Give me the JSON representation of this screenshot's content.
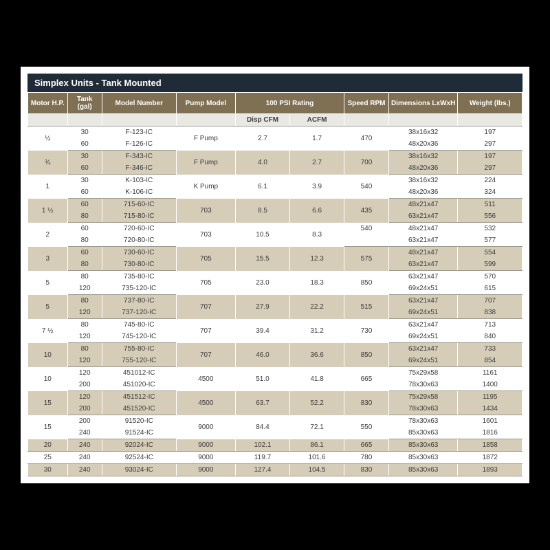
{
  "title": "Simplex Units - Tank Mounted",
  "headers": {
    "motor": "Motor H.P.",
    "tank": "Tank (gal)",
    "model": "Model Number",
    "pump": "Pump Model",
    "psi": "100 PSI Rating",
    "speed": "Speed RPM",
    "dims": "Dimensions LxWxH",
    "weight": "Weight (lbs.)"
  },
  "subheaders": {
    "disp": "Disp CFM",
    "acfm": "ACFM"
  },
  "colWidths": [
    "8%",
    "7%",
    "15%",
    "12%",
    "11%",
    "11%",
    "9%",
    "14%",
    "13%"
  ],
  "groups": [
    {
      "shade": "w",
      "hp": "½",
      "rows": [
        {
          "tank": "30",
          "model": "F-123-IC",
          "dims": "38x16x32",
          "weight": "197"
        },
        {
          "tank": "60",
          "model": "F-126-IC",
          "dims": "48x20x36",
          "weight": "297"
        }
      ],
      "pump": "F Pump",
      "disp": "2.7",
      "acfm": "1.7",
      "rpm": "470"
    },
    {
      "shade": "t",
      "hp": "¾",
      "rows": [
        {
          "tank": "30",
          "model": "F-343-IC",
          "dims": "38x16x32",
          "weight": "197"
        },
        {
          "tank": "60",
          "model": "F-346-IC",
          "dims": "48x20x36",
          "weight": "297"
        }
      ],
      "pump": "F Pump",
      "disp": "4.0",
      "acfm": "2.7",
      "rpm": "700"
    },
    {
      "shade": "w",
      "hp": "1",
      "rows": [
        {
          "tank": "30",
          "model": "K-103-IC",
          "dims": "38x16x32",
          "weight": "224"
        },
        {
          "tank": "60",
          "model": "K-106-IC",
          "dims": "48x20x36",
          "weight": "324"
        }
      ],
      "pump": "K Pump",
      "disp": "6.1",
      "acfm": "3.9",
      "rpm": "540"
    },
    {
      "shade": "t",
      "hp": "1 ½",
      "rows": [
        {
          "tank": "60",
          "model": "715-60-IC",
          "dims": "48x21x47",
          "weight": "511"
        },
        {
          "tank": "80",
          "model": "715-80-IC",
          "dims": "63x21x47",
          "weight": "556"
        }
      ],
      "pump": "703",
      "disp": "8.5",
      "acfm": "6.6",
      "rpm": "435"
    },
    {
      "shade": "w",
      "hp": "2",
      "rows": [
        {
          "tank": "60",
          "model": "720-60-IC",
          "dims": "48x21x47",
          "weight": "532"
        },
        {
          "tank": "80",
          "model": "720-80-IC",
          "dims": "63x21x47",
          "weight": "577"
        }
      ],
      "pump": "703",
      "disp": "10.5",
      "acfm": "8.3",
      "rpm": "540",
      "rpmTop": true
    },
    {
      "shade": "t",
      "hp": "3",
      "rows": [
        {
          "tank": "60",
          "model": "730-60-IC",
          "dims": "48x21x47",
          "weight": "554"
        },
        {
          "tank": "80",
          "model": "730-80-IC",
          "dims": "63x21x47",
          "weight": "599"
        }
      ],
      "pump": "705",
      "disp": "15.5",
      "acfm": "12.3",
      "rpm": "575"
    },
    {
      "shade": "w",
      "hp": "5",
      "rows": [
        {
          "tank": "80",
          "model": "735-80-IC",
          "dims": "63x21x47",
          "weight": "570"
        },
        {
          "tank": "120",
          "model": "735-120-IC",
          "dims": "69x24x51",
          "weight": "615"
        }
      ],
      "pump": "705",
      "disp": "23.0",
      "acfm": "18.3",
      "rpm": "850"
    },
    {
      "shade": "t",
      "hp": "5",
      "rows": [
        {
          "tank": "80",
          "model": "737-80-IC",
          "dims": "63x21x47",
          "weight": "707"
        },
        {
          "tank": "120",
          "model": "737-120-IC",
          "dims": "69x24x51",
          "weight": "838"
        }
      ],
      "pump": "707",
      "disp": "27.9",
      "acfm": "22.2",
      "rpm": "515"
    },
    {
      "shade": "w",
      "hp": "7 ½",
      "rows": [
        {
          "tank": "80",
          "model": "745-80-IC",
          "dims": "63x21x47",
          "weight": "713"
        },
        {
          "tank": "120",
          "model": "745-120-IC",
          "dims": "69x24x51",
          "weight": "840"
        }
      ],
      "pump": "707",
      "disp": "39.4",
      "acfm": "31.2",
      "rpm": "730"
    },
    {
      "shade": "t",
      "hp": "10",
      "rows": [
        {
          "tank": "80",
          "model": "755-80-IC",
          "dims": "63x21x47",
          "weight": "733"
        },
        {
          "tank": "120",
          "model": "755-120-IC",
          "dims": "69x24x51",
          "weight": "854"
        }
      ],
      "pump": "707",
      "disp": "46.0",
      "acfm": "36.6",
      "rpm": "850"
    },
    {
      "shade": "w",
      "hp": "10",
      "rows": [
        {
          "tank": "120",
          "model": "451012-IC",
          "dims": "75x29x58",
          "weight": "1161"
        },
        {
          "tank": "200",
          "model": "451020-IC",
          "dims": "78x30x63",
          "weight": "1400"
        }
      ],
      "pump": "4500",
      "disp": "51.0",
      "acfm": "41.8",
      "rpm": "665"
    },
    {
      "shade": "t",
      "hp": "15",
      "rows": [
        {
          "tank": "120",
          "model": "451512-IC",
          "dims": "75x29x58",
          "weight": "1195"
        },
        {
          "tank": "200",
          "model": "451520-IC",
          "dims": "78x30x63",
          "weight": "1434"
        }
      ],
      "pump": "4500",
      "disp": "63.7",
      "acfm": "52.2",
      "rpm": "830"
    },
    {
      "shade": "w",
      "hp": "15",
      "rows": [
        {
          "tank": "200",
          "model": "91520-IC",
          "dims": "78x30x63",
          "weight": "1601"
        },
        {
          "tank": "240",
          "model": "91524-IC",
          "dims": "85x30x63",
          "weight": "1816"
        }
      ],
      "pump": "9000",
      "disp": "84.4",
      "acfm": "72.1",
      "rpm": "550"
    }
  ],
  "singles": [
    {
      "shade": "t",
      "hp": "20",
      "tank": "240",
      "model": "92024-IC",
      "pump": "9000",
      "disp": "102.1",
      "acfm": "86.1",
      "rpm": "665",
      "dims": "85x30x63",
      "weight": "1858"
    },
    {
      "shade": "w",
      "hp": "25",
      "tank": "240",
      "model": "92524-IC",
      "pump": "9000",
      "disp": "119.7",
      "acfm": "101.6",
      "rpm": "780",
      "dims": "85x30x63",
      "weight": "1872"
    },
    {
      "shade": "t",
      "hp": "30",
      "tank": "240",
      "model": "93024-IC",
      "pump": "9000",
      "disp": "127.4",
      "acfm": "104.5",
      "rpm": "830",
      "dims": "85x30x63",
      "weight": "1893"
    }
  ]
}
